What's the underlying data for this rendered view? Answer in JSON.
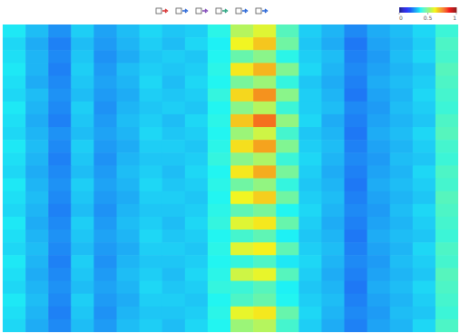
{
  "chart_data": {
    "type": "heatmap",
    "tick_labels": false,
    "color_range": [
      0,
      1
    ],
    "color_ticks": [
      0,
      0.5,
      1
    ],
    "cells": [
      [
        0.36,
        0.31,
        0.26,
        0.33,
        0.28,
        0.31,
        0.34,
        0.32,
        0.33,
        0.39,
        0.55,
        0.6,
        0.44,
        0.33,
        0.3,
        0.25,
        0.29,
        0.31,
        0.34,
        0.41
      ],
      [
        0.34,
        0.29,
        0.24,
        0.31,
        0.27,
        0.3,
        0.33,
        0.31,
        0.34,
        0.37,
        0.62,
        0.68,
        0.47,
        0.32,
        0.29,
        0.23,
        0.28,
        0.3,
        0.33,
        0.43
      ],
      [
        0.35,
        0.3,
        0.25,
        0.32,
        0.26,
        0.29,
        0.32,
        0.33,
        0.32,
        0.38,
        0.46,
        0.5,
        0.39,
        0.33,
        0.31,
        0.24,
        0.27,
        0.31,
        0.34,
        0.42
      ],
      [
        0.36,
        0.3,
        0.24,
        0.33,
        0.27,
        0.31,
        0.33,
        0.32,
        0.33,
        0.39,
        0.64,
        0.7,
        0.49,
        0.34,
        0.3,
        0.25,
        0.28,
        0.3,
        0.32,
        0.44
      ],
      [
        0.35,
        0.29,
        0.25,
        0.32,
        0.28,
        0.3,
        0.34,
        0.31,
        0.34,
        0.38,
        0.48,
        0.52,
        0.4,
        0.32,
        0.29,
        0.24,
        0.29,
        0.31,
        0.33,
        0.43
      ],
      [
        0.34,
        0.31,
        0.26,
        0.31,
        0.27,
        0.29,
        0.33,
        0.32,
        0.33,
        0.4,
        0.66,
        0.74,
        0.5,
        0.33,
        0.3,
        0.23,
        0.28,
        0.3,
        0.34,
        0.42
      ],
      [
        0.36,
        0.3,
        0.25,
        0.33,
        0.26,
        0.3,
        0.32,
        0.33,
        0.32,
        0.38,
        0.5,
        0.55,
        0.41,
        0.33,
        0.31,
        0.25,
        0.27,
        0.31,
        0.33,
        0.41
      ],
      [
        0.35,
        0.29,
        0.24,
        0.32,
        0.27,
        0.31,
        0.33,
        0.31,
        0.34,
        0.39,
        0.68,
        0.78,
        0.51,
        0.34,
        0.29,
        0.24,
        0.28,
        0.3,
        0.32,
        0.43
      ],
      [
        0.34,
        0.3,
        0.26,
        0.31,
        0.28,
        0.3,
        0.34,
        0.32,
        0.33,
        0.38,
        0.52,
        0.58,
        0.42,
        0.32,
        0.3,
        0.23,
        0.29,
        0.31,
        0.34,
        0.44
      ],
      [
        0.36,
        0.31,
        0.25,
        0.33,
        0.27,
        0.29,
        0.33,
        0.33,
        0.32,
        0.39,
        0.65,
        0.72,
        0.49,
        0.33,
        0.31,
        0.24,
        0.28,
        0.3,
        0.33,
        0.42
      ],
      [
        0.35,
        0.3,
        0.24,
        0.32,
        0.26,
        0.3,
        0.32,
        0.32,
        0.33,
        0.4,
        0.5,
        0.54,
        0.41,
        0.34,
        0.3,
        0.25,
        0.27,
        0.31,
        0.32,
        0.41
      ],
      [
        0.34,
        0.29,
        0.25,
        0.31,
        0.27,
        0.31,
        0.33,
        0.31,
        0.34,
        0.38,
        0.64,
        0.71,
        0.48,
        0.33,
        0.29,
        0.24,
        0.28,
        0.3,
        0.34,
        0.43
      ],
      [
        0.36,
        0.3,
        0.26,
        0.33,
        0.28,
        0.3,
        0.34,
        0.32,
        0.33,
        0.39,
        0.47,
        0.51,
        0.4,
        0.32,
        0.3,
        0.23,
        0.29,
        0.31,
        0.33,
        0.42
      ],
      [
        0.35,
        0.31,
        0.25,
        0.32,
        0.27,
        0.29,
        0.33,
        0.33,
        0.32,
        0.38,
        0.62,
        0.67,
        0.47,
        0.33,
        0.31,
        0.24,
        0.28,
        0.3,
        0.32,
        0.44
      ],
      [
        0.34,
        0.3,
        0.24,
        0.31,
        0.26,
        0.3,
        0.32,
        0.32,
        0.33,
        0.39,
        0.45,
        0.48,
        0.38,
        0.34,
        0.3,
        0.25,
        0.27,
        0.31,
        0.34,
        0.43
      ],
      [
        0.36,
        0.29,
        0.25,
        0.33,
        0.27,
        0.31,
        0.33,
        0.31,
        0.34,
        0.4,
        0.6,
        0.64,
        0.46,
        0.33,
        0.29,
        0.24,
        0.28,
        0.3,
        0.33,
        0.42
      ],
      [
        0.35,
        0.3,
        0.26,
        0.32,
        0.28,
        0.3,
        0.34,
        0.32,
        0.33,
        0.38,
        0.42,
        0.45,
        0.37,
        0.32,
        0.3,
        0.23,
        0.29,
        0.31,
        0.32,
        0.41
      ],
      [
        0.34,
        0.31,
        0.25,
        0.31,
        0.27,
        0.29,
        0.33,
        0.33,
        0.32,
        0.39,
        0.6,
        0.63,
        0.45,
        0.33,
        0.31,
        0.24,
        0.28,
        0.3,
        0.34,
        0.43
      ],
      [
        0.36,
        0.3,
        0.24,
        0.33,
        0.26,
        0.3,
        0.32,
        0.32,
        0.33,
        0.38,
        0.4,
        0.43,
        0.36,
        0.34,
        0.3,
        0.25,
        0.27,
        0.31,
        0.33,
        0.42
      ],
      [
        0.35,
        0.29,
        0.25,
        0.32,
        0.27,
        0.31,
        0.33,
        0.31,
        0.34,
        0.39,
        0.58,
        0.61,
        0.44,
        0.33,
        0.29,
        0.24,
        0.28,
        0.3,
        0.32,
        0.44
      ],
      [
        0.34,
        0.3,
        0.26,
        0.31,
        0.28,
        0.3,
        0.34,
        0.32,
        0.33,
        0.4,
        0.41,
        0.44,
        0.37,
        0.32,
        0.3,
        0.23,
        0.29,
        0.31,
        0.34,
        0.43
      ],
      [
        0.36,
        0.31,
        0.25,
        0.33,
        0.27,
        0.29,
        0.33,
        0.33,
        0.32,
        0.38,
        0.43,
        0.46,
        0.38,
        0.33,
        0.31,
        0.24,
        0.28,
        0.3,
        0.33,
        0.42
      ],
      [
        0.35,
        0.3,
        0.24,
        0.32,
        0.26,
        0.3,
        0.32,
        0.32,
        0.33,
        0.39,
        0.61,
        0.64,
        0.46,
        0.34,
        0.3,
        0.25,
        0.27,
        0.31,
        0.32,
        0.41
      ],
      [
        0.34,
        0.29,
        0.25,
        0.31,
        0.27,
        0.31,
        0.33,
        0.31,
        0.34,
        0.38,
        0.52,
        0.55,
        0.42,
        0.33,
        0.29,
        0.24,
        0.28,
        0.3,
        0.34,
        0.43
      ]
    ]
  }
}
